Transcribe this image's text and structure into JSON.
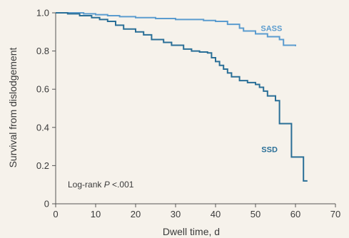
{
  "chart_data": {
    "type": "line",
    "title": "",
    "xlabel": "Dwell time, d",
    "ylabel": "Survival from dislodgement",
    "xlim": [
      0,
      70
    ],
    "ylim": [
      0,
      1.0
    ],
    "x_ticks": [
      0,
      10,
      20,
      30,
      40,
      50,
      60,
      70
    ],
    "y_ticks": [
      0,
      0.2,
      0.4,
      0.6,
      0.8,
      1.0
    ],
    "x_tick_labels": [
      "0",
      "10",
      "20",
      "30",
      "40",
      "50",
      "60",
      "70"
    ],
    "y_tick_labels": [
      "0",
      "0.2",
      "0.4",
      "0.6",
      "0.8",
      "1.0"
    ],
    "grid": false,
    "annotation": "Log-rank P <.001",
    "series": [
      {
        "name": "SASS",
        "color": "#5b9ccf",
        "step": true,
        "points": [
          [
            0,
            1.0
          ],
          [
            2,
            1.0
          ],
          [
            7,
            0.995
          ],
          [
            10,
            0.99
          ],
          [
            13,
            0.985
          ],
          [
            16,
            0.98
          ],
          [
            20,
            0.975
          ],
          [
            25,
            0.97
          ],
          [
            30,
            0.965
          ],
          [
            37,
            0.96
          ],
          [
            40,
            0.955
          ],
          [
            43,
            0.94
          ],
          [
            46,
            0.92
          ],
          [
            47,
            0.905
          ],
          [
            50,
            0.89
          ],
          [
            53,
            0.875
          ],
          [
            56,
            0.86
          ],
          [
            57,
            0.83
          ],
          [
            60,
            0.825
          ]
        ]
      },
      {
        "name": "SSD",
        "color": "#2a6f97",
        "step": true,
        "points": [
          [
            0,
            1.0
          ],
          [
            3,
            0.995
          ],
          [
            6,
            0.985
          ],
          [
            9,
            0.975
          ],
          [
            11,
            0.965
          ],
          [
            13,
            0.955
          ],
          [
            15,
            0.935
          ],
          [
            17,
            0.915
          ],
          [
            20,
            0.9
          ],
          [
            22,
            0.885
          ],
          [
            24,
            0.86
          ],
          [
            27,
            0.845
          ],
          [
            29,
            0.83
          ],
          [
            32,
            0.81
          ],
          [
            34,
            0.8
          ],
          [
            36,
            0.795
          ],
          [
            38,
            0.79
          ],
          [
            39,
            0.765
          ],
          [
            40,
            0.745
          ],
          [
            41,
            0.725
          ],
          [
            42,
            0.705
          ],
          [
            43,
            0.685
          ],
          [
            44,
            0.665
          ],
          [
            46,
            0.645
          ],
          [
            48,
            0.635
          ],
          [
            50,
            0.625
          ],
          [
            51,
            0.61
          ],
          [
            52,
            0.59
          ],
          [
            53,
            0.565
          ],
          [
            55,
            0.54
          ],
          [
            56,
            0.42
          ],
          [
            59,
            0.245
          ],
          [
            62,
            0.12
          ],
          [
            63,
            0.12
          ]
        ]
      }
    ]
  }
}
